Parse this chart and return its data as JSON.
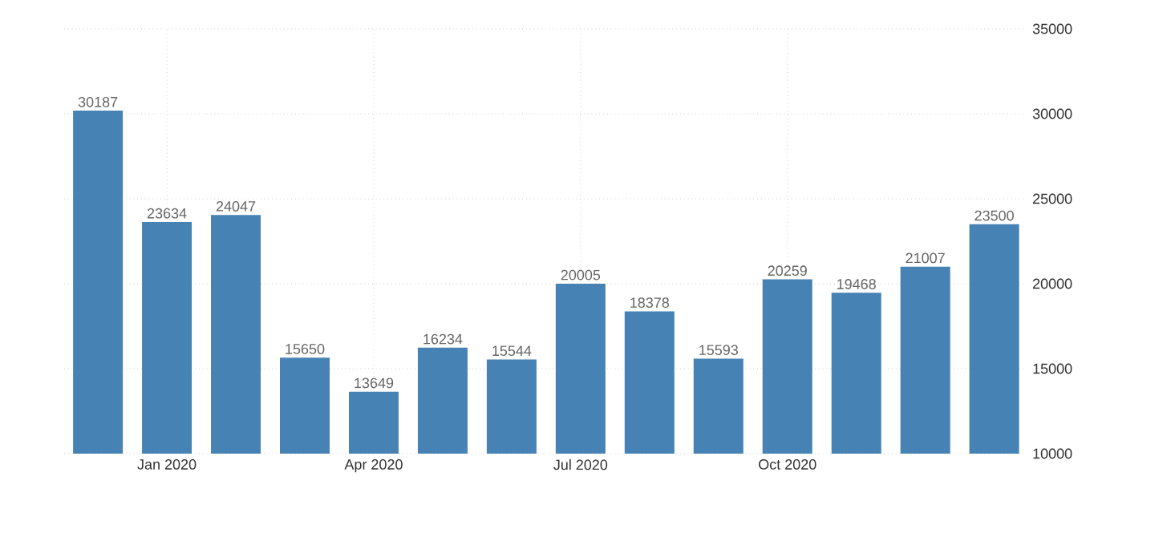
{
  "chart_data": {
    "type": "bar",
    "categories": [
      null,
      "Jan 2020",
      null,
      null,
      "Apr 2020",
      null,
      null,
      "Jul 2020",
      null,
      null,
      "Oct 2020",
      null,
      null,
      null
    ],
    "values": [
      30187,
      23634,
      24047,
      15650,
      13649,
      16234,
      15544,
      20005,
      18378,
      15593,
      20259,
      19468,
      21007,
      23500
    ],
    "color": "#4682b4",
    "ylim": [
      10000,
      35000
    ],
    "yticks": [
      10000,
      15000,
      20000,
      25000,
      30000,
      35000
    ],
    "grid": true,
    "data_labels": true
  }
}
